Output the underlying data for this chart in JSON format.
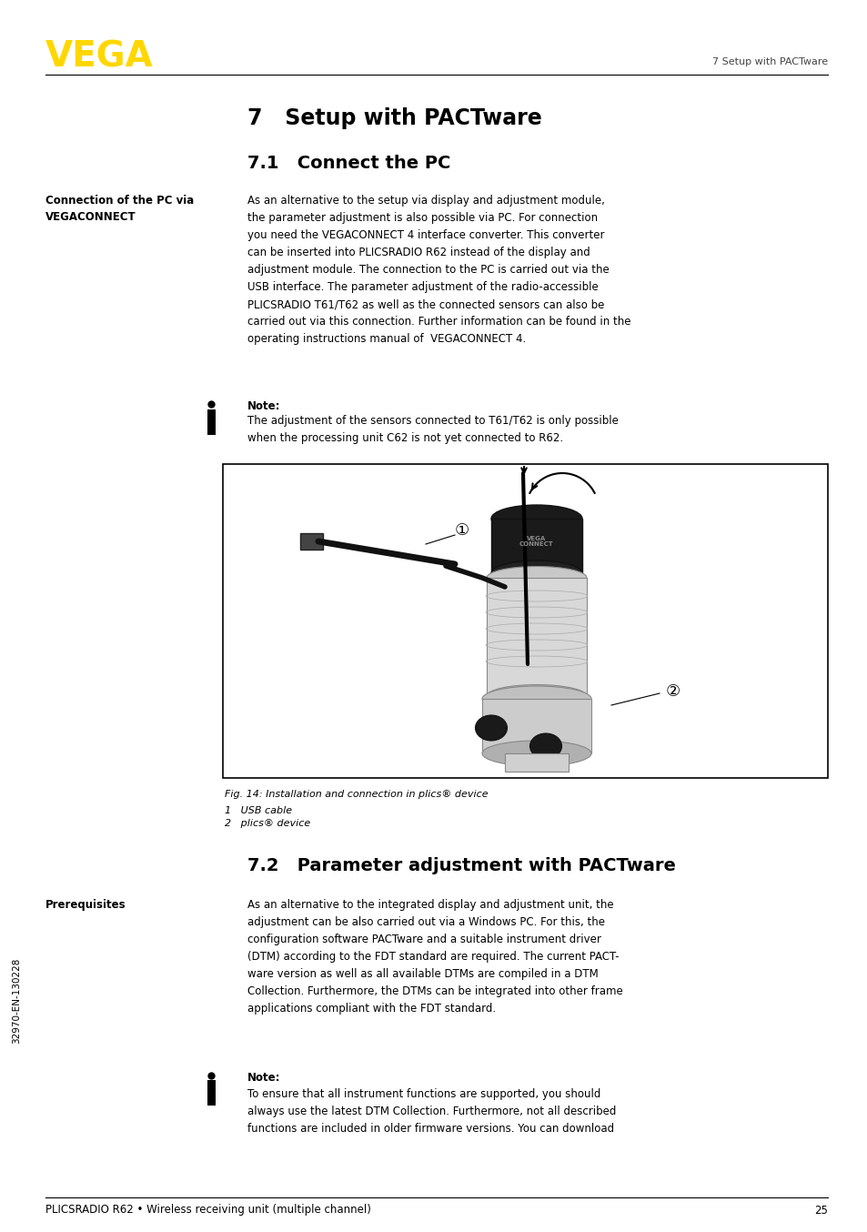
{
  "bg_color": "#ffffff",
  "vega_logo_text": "VEGA",
  "vega_logo_color": "#FFD700",
  "header_right_text": "7 Setup with PACTware",
  "footer_left_text": "PLICSRADIO R62 • Wireless receiving unit (multiple channel)",
  "footer_right_text": "25",
  "sidebar_text": "32970-EN-130228",
  "chapter_title": "7   Setup with PACTware",
  "section1_title": "7.1   Connect the PC",
  "section1_label": "Connection of the PC via\nVEGACONNECT",
  "section1_body": "As an alternative to the setup via display and adjustment module,\nthe parameter adjustment is also possible via PC. For connection\nyou need the VEGACONNECT 4 interface converter. This converter\ncan be inserted into PLICSRADIO R62 instead of the display and\nadjustment module. The connection to the PC is carried out via the\nUSB interface. The parameter adjustment of the radio-accessible\nPLICSRADIO T61/T62 as well as the connected sensors can also be\ncarried out via this connection. Further information can be found in the\noperating instructions manual of  VEGACONNECT 4.",
  "note1_title": "Note:",
  "note1_body": "The adjustment of the sensors connected to T61/T62 is only possible\nwhen the processing unit C62 is not yet connected to R62.",
  "fig_caption": "Fig. 14: Installation and connection in plics® device",
  "fig_item1": "1   USB cable",
  "fig_item2": "2   plics® device",
  "section2_title": "7.2   Parameter adjustment with PACTware",
  "section2_label": "Prerequisites",
  "section2_body": "As an alternative to the integrated display and adjustment unit, the\nadjustment can be also carried out via a Windows PC. For this, the\nconfiguration software PACTware and a suitable instrument driver\n(DTM) according to the FDT standard are required. The current PACT-\nware version as well as all available DTMs are compiled in a DTM\nCollection. Furthermore, the DTMs can be integrated into other frame\napplications compliant with the FDT standard.",
  "note2_title": "Note:",
  "note2_body": "To ensure that all instrument functions are supported, you should\nalways use the latest DTM Collection. Furthermore, not all described\nfunctions are included in older firmware versions. You can download"
}
